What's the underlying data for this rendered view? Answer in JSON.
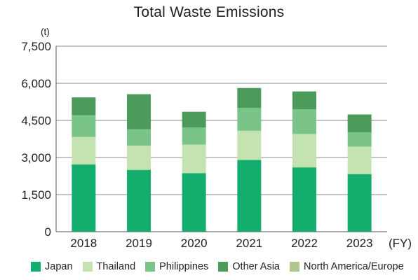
{
  "chart_data": {
    "type": "bar",
    "stacked": true,
    "title": "Total Waste Emissions",
    "unit_label": "(t)",
    "x_unit_label": "(FY)",
    "categories": [
      "2018",
      "2019",
      "2020",
      "2021",
      "2022",
      "2023"
    ],
    "yticks": [
      "0",
      "1,500",
      "3,000",
      "4,500",
      "6,000",
      "7,500"
    ],
    "ylim": [
      0,
      7500
    ],
    "grid": true,
    "legend_position": "bottom",
    "series": [
      {
        "name": "Japan",
        "color": "#13ad6e",
        "values": [
          2720,
          2500,
          2370,
          2900,
          2600,
          2330
        ]
      },
      {
        "name": "Thailand",
        "color": "#c4e3b0",
        "values": [
          1110,
          980,
          1150,
          1180,
          1350,
          1110
        ]
      },
      {
        "name": "Philippines",
        "color": "#7ac48a",
        "values": [
          880,
          660,
          690,
          930,
          1000,
          580
        ]
      },
      {
        "name": "Other Asia",
        "color": "#4d9b5a",
        "values": [
          720,
          1420,
          640,
          800,
          720,
          720
        ]
      },
      {
        "name": "North America/Europe",
        "color": "#adc78e",
        "values": [
          0,
          0,
          0,
          0,
          0,
          0
        ]
      }
    ]
  }
}
